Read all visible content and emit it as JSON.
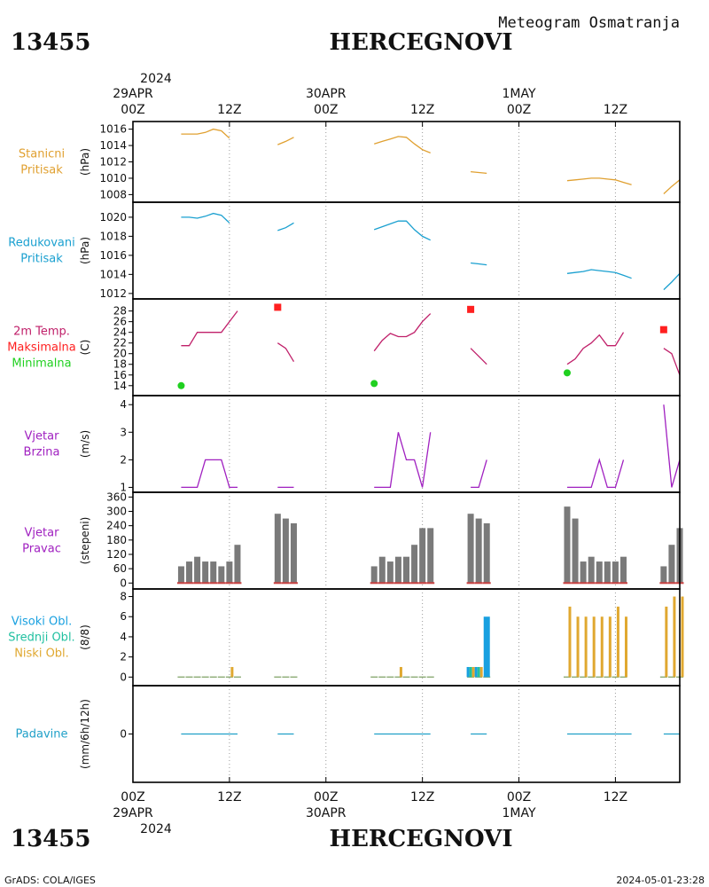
{
  "header": {
    "station_id": "13455",
    "station_name": "HERCEGNOVI",
    "product": "Meteogram Osmatranja",
    "year": "2024",
    "footer_left": "GrADS: COLA/IGES",
    "footer_right": "2024-05-01-23:28"
  },
  "time_axis": {
    "hour_start": 0,
    "hour_end": 68,
    "ticks": [
      {
        "hour": 0,
        "label": "00Z",
        "date": "29APR"
      },
      {
        "hour": 12,
        "label": "12Z",
        "date": ""
      },
      {
        "hour": 24,
        "label": "00Z",
        "date": "30APR"
      },
      {
        "hour": 36,
        "label": "12Z",
        "date": ""
      },
      {
        "hour": 48,
        "label": "00Z",
        "date": "1MAY"
      },
      {
        "hour": 60,
        "label": "12Z",
        "date": ""
      }
    ]
  },
  "colors": {
    "pressure": "#e0a030",
    "reduced": "#1aa0d0",
    "temp": "#c0206a",
    "tmax": "#ff2020",
    "tmin": "#20d020",
    "wind": "#a020c0",
    "dir_bar": "#7a7a7a",
    "dir_base": "#c84040",
    "cloud_high": "#18a0e0",
    "cloud_mid": "#20c0a0",
    "cloud_low": "#e0a830",
    "precip": "#20a0c8"
  },
  "chart_data": [
    {
      "type": "line",
      "id": "station_pressure",
      "labels": [
        "Stanicni",
        "Pritisak"
      ],
      "label_color": "#e0a030",
      "ylabel": "(hPa)",
      "ylim": [
        1007.5,
        1016.5
      ],
      "yticks": [
        1008,
        1010,
        1012,
        1014,
        1016
      ],
      "series": [
        {
          "color": "#e0a030",
          "segments": [
            [
              [
                6,
                1015.4
              ],
              [
                7,
                1015.4
              ],
              [
                8,
                1015.4
              ],
              [
                9,
                1015.6
              ],
              [
                10,
                1016.0
              ],
              [
                11,
                1015.8
              ],
              [
                12,
                1014.9
              ]
            ],
            [
              [
                18,
                1014.1
              ],
              [
                19,
                1014.5
              ],
              [
                20,
                1015.0
              ]
            ],
            [
              [
                30,
                1014.2
              ],
              [
                31,
                1014.5
              ],
              [
                32,
                1014.8
              ],
              [
                33,
                1015.1
              ],
              [
                34,
                1015.0
              ],
              [
                35,
                1014.2
              ],
              [
                36,
                1013.5
              ],
              [
                37,
                1013.1
              ]
            ],
            [
              [
                42,
                1010.8
              ],
              [
                43,
                1010.7
              ],
              [
                44,
                1010.6
              ]
            ],
            [
              [
                54,
                1009.7
              ],
              [
                55,
                1009.8
              ],
              [
                56,
                1009.9
              ],
              [
                57,
                1010.0
              ],
              [
                58,
                1010.0
              ],
              [
                59,
                1009.9
              ],
              [
                60,
                1009.8
              ],
              [
                61,
                1009.5
              ],
              [
                62,
                1009.2
              ]
            ],
            [
              [
                66,
                1008.1
              ],
              [
                67,
                1009.0
              ],
              [
                68,
                1009.8
              ]
            ]
          ]
        }
      ]
    },
    {
      "type": "line",
      "id": "reduced_pressure",
      "labels": [
        "Redukovani",
        "Pritisak"
      ],
      "label_color": "#1aa0d0",
      "ylabel": "(hPa)",
      "ylim": [
        1011.8,
        1021.2
      ],
      "yticks": [
        1012,
        1014,
        1016,
        1018,
        1020
      ],
      "series": [
        {
          "color": "#1aa0d0",
          "segments": [
            [
              [
                6,
                1020.0
              ],
              [
                7,
                1020.0
              ],
              [
                8,
                1019.9
              ],
              [
                9,
                1020.1
              ],
              [
                10,
                1020.4
              ],
              [
                11,
                1020.2
              ],
              [
                12,
                1019.4
              ]
            ],
            [
              [
                18,
                1018.6
              ],
              [
                19,
                1018.9
              ],
              [
                20,
                1019.4
              ]
            ],
            [
              [
                30,
                1018.7
              ],
              [
                31,
                1019.0
              ],
              [
                32,
                1019.3
              ],
              [
                33,
                1019.6
              ],
              [
                34,
                1019.6
              ],
              [
                35,
                1018.7
              ],
              [
                36,
                1018.0
              ],
              [
                37,
                1017.6
              ]
            ],
            [
              [
                42,
                1015.2
              ],
              [
                43,
                1015.1
              ],
              [
                44,
                1015.0
              ]
            ],
            [
              [
                54,
                1014.1
              ],
              [
                55,
                1014.2
              ],
              [
                56,
                1014.3
              ],
              [
                57,
                1014.5
              ],
              [
                58,
                1014.4
              ],
              [
                59,
                1014.3
              ],
              [
                60,
                1014.2
              ],
              [
                61,
                1013.9
              ],
              [
                62,
                1013.6
              ]
            ],
            [
              [
                66,
                1012.4
              ],
              [
                67,
                1013.2
              ],
              [
                68,
                1014.1
              ]
            ]
          ]
        }
      ]
    },
    {
      "type": "line",
      "id": "temperature",
      "labels": [
        "2m Temp.",
        "Maksimalna",
        "Minimalna"
      ],
      "label_colors": [
        "#c0206a",
        "#ff2020",
        "#20d020"
      ],
      "ylabel": "(C)",
      "ylim": [
        12.8,
        29.6
      ],
      "yticks": [
        14,
        16,
        18,
        20,
        22,
        24,
        26,
        28
      ],
      "series": [
        {
          "color": "#c0206a",
          "segments": [
            [
              [
                6,
                21.5
              ],
              [
                7,
                21.5
              ],
              [
                8,
                24.0
              ],
              [
                9,
                24.0
              ],
              [
                10,
                24.0
              ],
              [
                11,
                24.0
              ],
              [
                12,
                26.0
              ],
              [
                13,
                28.0
              ]
            ],
            [
              [
                18,
                22.0
              ],
              [
                19,
                21.0
              ],
              [
                20,
                18.5
              ]
            ],
            [
              [
                30,
                20.5
              ],
              [
                31,
                22.5
              ],
              [
                32,
                23.8
              ],
              [
                33,
                23.2
              ],
              [
                34,
                23.2
              ],
              [
                35,
                24.0
              ],
              [
                36,
                26.0
              ],
              [
                37,
                27.5
              ]
            ],
            [
              [
                42,
                21.0
              ],
              [
                43,
                19.5
              ],
              [
                44,
                18.0
              ]
            ],
            [
              [
                54,
                18.0
              ],
              [
                55,
                19.0
              ],
              [
                56,
                21.0
              ],
              [
                57,
                22.0
              ],
              [
                58,
                23.5
              ],
              [
                59,
                21.5
              ],
              [
                60,
                21.5
              ],
              [
                61,
                24.0
              ]
            ],
            [
              [
                66,
                21.0
              ],
              [
                67,
                20.0
              ],
              [
                68,
                16.0
              ]
            ]
          ]
        }
      ],
      "maximum": [
        [
          18,
          28.7
        ],
        [
          42,
          28.3
        ],
        [
          66,
          24.5
        ]
      ],
      "minimum": [
        [
          6,
          14.0
        ],
        [
          30,
          14.4
        ],
        [
          54,
          16.4
        ]
      ]
    },
    {
      "type": "line",
      "id": "wind_speed",
      "labels": [
        "Vjetar",
        "Brzina"
      ],
      "label_color": "#a020c0",
      "ylabel": "(m/s)",
      "ylim": [
        0.95,
        4.2
      ],
      "yticks": [
        1,
        2,
        3,
        4
      ],
      "series": [
        {
          "color": "#a020c0",
          "segments": [
            [
              [
                6,
                1
              ],
              [
                7,
                1
              ],
              [
                8,
                1
              ],
              [
                9,
                2
              ],
              [
                10,
                2
              ],
              [
                11,
                2
              ],
              [
                12,
                1
              ],
              [
                13,
                1
              ]
            ],
            [
              [
                18,
                1
              ],
              [
                19,
                1
              ],
              [
                20,
                1
              ]
            ],
            [
              [
                30,
                1
              ],
              [
                31,
                1
              ],
              [
                32,
                1
              ],
              [
                33,
                3
              ],
              [
                34,
                2
              ],
              [
                35,
                2
              ],
              [
                36,
                1
              ],
              [
                37,
                3
              ]
            ],
            [
              [
                42,
                1
              ],
              [
                43,
                1
              ],
              [
                44,
                2
              ]
            ],
            [
              [
                54,
                1
              ],
              [
                55,
                1
              ],
              [
                56,
                1
              ],
              [
                57,
                1
              ],
              [
                58,
                2
              ],
              [
                59,
                1
              ],
              [
                60,
                1
              ],
              [
                61,
                2
              ]
            ],
            [
              [
                66,
                4
              ],
              [
                67,
                1
              ],
              [
                68,
                2
              ]
            ]
          ]
        }
      ]
    },
    {
      "type": "bar",
      "id": "wind_direction",
      "labels": [
        "Vjetar",
        "Pravac"
      ],
      "label_color": "#a020c0",
      "ylabel": "(stepeni)",
      "ylim": [
        -10,
        365
      ],
      "yticks": [
        0,
        60,
        120,
        180,
        240,
        300,
        360
      ],
      "x": [
        6,
        7,
        8,
        9,
        10,
        11,
        12,
        13,
        18,
        19,
        20,
        30,
        31,
        32,
        33,
        34,
        35,
        36,
        37,
        42,
        43,
        44,
        54,
        55,
        56,
        57,
        58,
        59,
        60,
        61,
        66,
        67,
        68
      ],
      "values": [
        70,
        90,
        110,
        90,
        90,
        70,
        90,
        160,
        290,
        270,
        250,
        70,
        110,
        90,
        110,
        110,
        160,
        230,
        230,
        290,
        270,
        250,
        320,
        270,
        90,
        110,
        90,
        90,
        90,
        110,
        70,
        160,
        230
      ]
    },
    {
      "type": "bar",
      "id": "cloud_cover",
      "labels": [
        "Visoki Obl.",
        "Srednji Obl.",
        "Niski Obl."
      ],
      "label_colors": [
        "#18a0e0",
        "#20c0a0",
        "#e0a830"
      ],
      "ylabel": "(8/8)",
      "ylim": [
        -0.5,
        8.4
      ],
      "yticks": [
        0,
        2,
        4,
        6,
        8
      ],
      "x": [
        6,
        7,
        8,
        9,
        10,
        11,
        12,
        13,
        18,
        19,
        20,
        30,
        31,
        32,
        33,
        34,
        35,
        36,
        37,
        42,
        43,
        44,
        54,
        55,
        56,
        57,
        58,
        59,
        60,
        61,
        66,
        67,
        68
      ],
      "series": [
        {
          "name": "Visoki Obl.",
          "values": [
            0,
            0,
            0,
            0,
            0,
            0,
            0,
            0,
            0,
            0,
            0,
            0,
            0,
            0,
            0,
            0,
            0,
            0,
            0,
            1,
            1,
            6,
            0,
            0,
            0,
            0,
            0,
            0,
            0,
            0,
            0,
            0,
            0
          ]
        },
        {
          "name": "Srednji Obl.",
          "values": [
            0,
            0,
            0,
            0,
            0,
            0,
            0,
            0,
            0,
            0,
            0,
            0,
            0,
            0,
            0,
            0,
            0,
            0,
            0,
            1,
            1,
            1,
            0,
            0,
            0,
            0,
            0,
            0,
            0,
            0,
            0,
            0,
            0
          ]
        },
        {
          "name": "Niski Obl.",
          "values": [
            0,
            0,
            0,
            0,
            0,
            0,
            1,
            0,
            0,
            0,
            0,
            0,
            0,
            0,
            1,
            0,
            0,
            0,
            0,
            1,
            1,
            1,
            7,
            6,
            6,
            6,
            6,
            6,
            7,
            6,
            7,
            8,
            8
          ]
        }
      ]
    },
    {
      "type": "line",
      "id": "precipitation",
      "labels": [
        "Padavine"
      ],
      "label_color": "#20a0c8",
      "ylabel": "(mm/6h/12h)",
      "ylim": [
        -1,
        1
      ],
      "yticks": [
        0
      ],
      "series": [
        {
          "color": "#20a0c8",
          "segments": [
            [
              [
                6,
                0
              ],
              [
                13,
                0
              ]
            ],
            [
              [
                18,
                0
              ],
              [
                20,
                0
              ]
            ],
            [
              [
                30,
                0
              ],
              [
                37,
                0
              ]
            ],
            [
              [
                42,
                0
              ],
              [
                44,
                0
              ]
            ],
            [
              [
                54,
                0
              ],
              [
                62,
                0
              ]
            ],
            [
              [
                66,
                0
              ],
              [
                68,
                0
              ]
            ]
          ]
        }
      ]
    }
  ]
}
